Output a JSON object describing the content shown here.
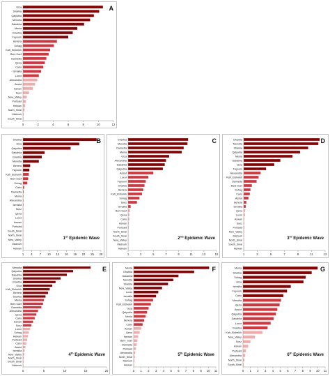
{
  "colors": {
    "high": "#8b0000",
    "mid": "#d9323b",
    "low": "#f4aaaa",
    "axis": "#888888",
    "text": "#222222"
  },
  "chart_data": [
    {
      "id": "A",
      "panel_letter": "A",
      "type": "bar",
      "orientation": "horizontal",
      "title": "",
      "xlim": [
        0,
        12
      ],
      "xticks": [
        0,
        2,
        4,
        6,
        8,
        10,
        12
      ],
      "categories": [
        "Giza",
        "Sharkia",
        "Qalyubia",
        "Menofia",
        "Dakahlia",
        "Menia",
        "Gharbia",
        "Fayoum",
        "Behera",
        "Sohag",
        "Kafr_Elsheikh",
        "Beni Suef",
        "Damietta",
        "Qena",
        "Cairo",
        "Ismailia",
        "Luxor",
        "Alexandria",
        "Assiut",
        "Aswan",
        "Suez",
        "New_Valley",
        "Portsaid",
        "Helwan",
        "North_Sinai",
        "Matrouh",
        "South_Sinai"
      ],
      "values": [
        10.6,
        10.1,
        9.4,
        8.9,
        8.1,
        7.2,
        6.6,
        6.0,
        4.5,
        4.1,
        3.6,
        3.4,
        3.1,
        2.9,
        2.7,
        2.4,
        2.1,
        1.9,
        1.6,
        1.3,
        0.8,
        0.5,
        0.4,
        0.3,
        0.2,
        0.1,
        0.05
      ]
    },
    {
      "id": "B",
      "panel_letter": "B",
      "type": "bar",
      "orientation": "horizontal",
      "title": "1st Epidemic Wave",
      "title_main": "1",
      "title_sup": "st",
      "title_rest": " Epidemic Wave",
      "xlim": [
        1,
        28
      ],
      "xticks": [
        1,
        4,
        7,
        10,
        13,
        16,
        19,
        22,
        25,
        28
      ],
      "categories": [
        "Sharkia",
        "Giza",
        "Qalyubia",
        "Dakahlia",
        "Gharbia",
        "Menofia",
        "Behera",
        "Fayoum",
        "Kafr_Elsheikh",
        "Beni Suef",
        "Sohag",
        "Cairo",
        "Damietta",
        "Menia",
        "Alexandria",
        "Ismailia",
        "Suez",
        "Qena",
        "Luxor",
        "Aswan",
        "Portsaid",
        "South_Sinai",
        "North_Sinai",
        "New_Valley",
        "Matrouh",
        "Helwan"
      ],
      "values": [
        26.5,
        20.5,
        17.5,
        8.5,
        7.5,
        6.5,
        3.5,
        3.2,
        3.0,
        2.8,
        2.5,
        1.4,
        1.2,
        1.1,
        1.1,
        1.1,
        1.05,
        1.05,
        1.05,
        1.0,
        1.0,
        1.0,
        1.0,
        1.0,
        1.0,
        1.0
      ]
    },
    {
      "id": "C",
      "panel_letter": "C",
      "type": "bar",
      "orientation": "horizontal",
      "title": "2nd Epidemic Wave",
      "title_main": "2",
      "title_sup": "nd",
      "title_rest": " Epidemic Wave",
      "xlim": [
        1,
        15
      ],
      "xticks": [
        1,
        3,
        5,
        7,
        9,
        11,
        13,
        15
      ],
      "categories": [
        "Gharbia",
        "Menofia",
        "Damietta",
        "Menia",
        "Giza",
        "Alexandria",
        "Dakahlia",
        "Qalyubia",
        "Assiut",
        "Luxor",
        "Fayoum",
        "Sharkia",
        "Behera",
        "Kafr_Elsheikh",
        "Sohag",
        "Suez",
        "Ismailia",
        "Beni Suef",
        "Qena",
        "Cairo",
        "Aswan",
        "Portsaid",
        "North_Sinai",
        "South_Sinai",
        "New_Valley",
        "Matrouh",
        "Helwan"
      ],
      "values": [
        10.5,
        10.4,
        9.8,
        9.5,
        7.5,
        7.0,
        6.8,
        6.5,
        5.0,
        4.2,
        3.8,
        3.6,
        3.4,
        3.2,
        2.8,
        2.4,
        1.4,
        1.3,
        1.2,
        1.2,
        1.1,
        1.1,
        1.05,
        1.05,
        1.0,
        1.0,
        1.0
      ]
    },
    {
      "id": "D",
      "panel_letter": "D",
      "type": "bar",
      "orientation": "horizontal",
      "title": "3rd Epidemic Wave",
      "title_main": "3",
      "title_sup": "rd",
      "title_rest": " Epidemic Wave",
      "xlim": [
        1,
        13
      ],
      "xticks": [
        1,
        3,
        5,
        7,
        9,
        11,
        13
      ],
      "categories": [
        "Gharbia",
        "Menofia",
        "Sharkia",
        "Qalyubia",
        "Menia",
        "Dakahlia",
        "Giza",
        "Fayoum",
        "Alexandria",
        "Kafr_Elsheikh",
        "Damietta",
        "Beni Suef",
        "Sohag",
        "Cairo",
        "Assiut",
        "Behera",
        "Ismailia",
        "Qena",
        "Luxor",
        "Aswan",
        "Suez",
        "Portsaid",
        "New_Valley",
        "Matrouh",
        "North_Sinai",
        "South_Sinai",
        "Helwan"
      ],
      "values": [
        12.2,
        12.0,
        10.5,
        9.3,
        8.2,
        6.4,
        5.5,
        4.3,
        3.5,
        3.2,
        2.9,
        2.2,
        2.0,
        1.9,
        1.7,
        1.4,
        1.3,
        1.2,
        1.2,
        1.1,
        1.1,
        1.1,
        1.05,
        1.05,
        1.0,
        1.0,
        1.0
      ]
    },
    {
      "id": "E",
      "panel_letter": "E",
      "type": "bar",
      "orientation": "horizontal",
      "title": "4th Epidemic Wave",
      "title_main": "4",
      "title_sup": "th",
      "title_rest": " Epidemic Wave",
      "xlim": [
        0,
        20
      ],
      "xticks": [
        0,
        5,
        10,
        15,
        20
      ],
      "categories": [
        "Menofia",
        "Qalyubia",
        "Dakahlia",
        "Sharkia",
        "Gharbia",
        "Giza",
        "Kafr_Elsheikh",
        "Behera",
        "Sharkia",
        "Menia",
        "Beni Suef",
        "Damietta",
        "Alexandria",
        "Qena",
        "Cairo",
        "Aswan",
        "Suez",
        "Luxor",
        "Sohag",
        "Helwan",
        "Portsaid",
        "Cairo",
        "Assiut",
        "Ismailia",
        "New_Valley",
        "North_Sinai",
        "South_Sinai",
        "Matrouh"
      ],
      "values": [
        16.2,
        12.0,
        10.5,
        9.0,
        7.8,
        7.0,
        6.4,
        6.0,
        5.4,
        5.0,
        4.8,
        4.4,
        3.6,
        3.2,
        2.8,
        2.4,
        2.0,
        1.7,
        1.4,
        1.2,
        1.0,
        0.8,
        0.6,
        0.4,
        0.3,
        0.2,
        0.15,
        0.1
      ]
    },
    {
      "id": "F",
      "panel_letter": "F",
      "type": "bar",
      "orientation": "horizontal",
      "title": "5th Epidemic Wave",
      "title_main": "5",
      "title_sup": "th",
      "title_rest": " Epidemic Wave",
      "xlim": [
        0,
        11
      ],
      "xticks": [
        0,
        1,
        2,
        3,
        4,
        5,
        6,
        7,
        8,
        9,
        10,
        11
      ],
      "categories": [
        "Menia",
        "Gharbia",
        "Dakahlia",
        "Menofia",
        "Sharkia",
        "New_Valley",
        "Luxor",
        "Ismailia",
        "Sohag",
        "Kafr_Elsheikh",
        "Giza",
        "Qalyubia",
        "Menia",
        "Behera",
        "Cairo",
        "Aswan",
        "Qena",
        "Helwan",
        "Beni_Suef",
        "Damietta",
        "Portsaid",
        "Alexandria",
        "North_Sinai",
        "Matrouh",
        "Helwan"
      ],
      "values": [
        10.1,
        8.1,
        6.0,
        5.3,
        4.6,
        3.8,
        3.3,
        3.0,
        2.6,
        2.3,
        2.0,
        1.8,
        1.6,
        1.4,
        1.2,
        1.0,
        0.8,
        0.6,
        0.5,
        0.4,
        0.3,
        0.2,
        0.15,
        0.1,
        0.05
      ]
    },
    {
      "id": "G",
      "panel_letter": "G",
      "type": "bar",
      "orientation": "horizontal",
      "title": "6th Epidemic Wave",
      "title_main": "6",
      "title_sup": "th",
      "title_rest": " Epidemic Wave",
      "xlim": [
        0,
        11
      ],
      "xticks": [
        0,
        1,
        2,
        3,
        4,
        5,
        6,
        7,
        8,
        9,
        10,
        11
      ],
      "categories": [
        "Menia",
        "Sharkia",
        "Sohag",
        "Giza",
        "Ismailia",
        "Fayoum",
        "Cairo",
        "Menofia",
        "Qena",
        "Assiut",
        "Qalyubia",
        "Dakahlia",
        "Luxor",
        "Gharbia",
        "Kafr_Elsheikh",
        "New_Valley",
        "Suez",
        "Aswan",
        "Portsaid",
        "Alexandria",
        "North_Sinai",
        "South_Sinai"
      ],
      "values": [
        10.0,
        9.2,
        8.4,
        8.1,
        6.4,
        5.9,
        5.4,
        5.1,
        4.9,
        4.6,
        4.4,
        4.1,
        3.7,
        3.3,
        2.6,
        1.6,
        1.0,
        0.7,
        0.4,
        0.3,
        0.2,
        0.1
      ]
    }
  ]
}
